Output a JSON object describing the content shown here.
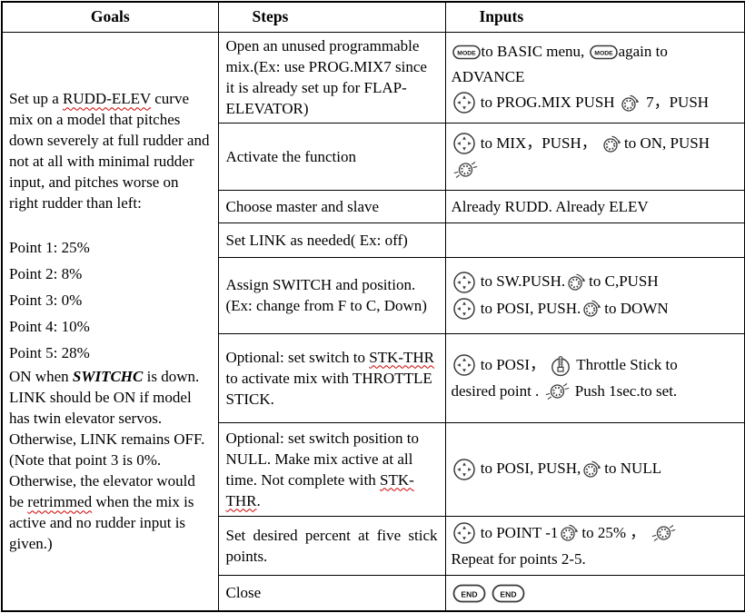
{
  "icons": {
    "mode_label": "MODE",
    "end_label": "END"
  },
  "table": {
    "headers": [
      {
        "label": "Goals"
      },
      {
        "label": "Steps"
      },
      {
        "label": "Inputs"
      }
    ],
    "goals": {
      "blocks": [
        {
          "kind": "para",
          "tokens": [
            {
              "text": "Set up a "
            },
            {
              "text": "RUDD-ELEV",
              "style": "squiggle"
            },
            {
              "text": " curve mix on a model that pitches down severely at full rudder and not at all with minimal rudder input, and pitches worse on right rudder than left:"
            }
          ]
        },
        {
          "kind": "spacer",
          "tokens": []
        },
        {
          "kind": "point",
          "tokens": [
            {
              "text": "Point 1: 25%"
            }
          ]
        },
        {
          "kind": "point",
          "tokens": [
            {
              "text": "Point 2: 8%"
            }
          ]
        },
        {
          "kind": "point",
          "tokens": [
            {
              "text": "Point 3: 0%"
            }
          ]
        },
        {
          "kind": "point",
          "tokens": [
            {
              "text": "Point 4: 10%"
            }
          ]
        },
        {
          "kind": "point",
          "tokens": [
            {
              "text": "Point 5: 28%"
            }
          ]
        },
        {
          "kind": "para",
          "tokens": [
            {
              "text": "ON when "
            },
            {
              "text": "SWITCHC",
              "style": "bi"
            },
            {
              "text": " is down. LINK should be ON if model has twin elevator servos. Otherwise, LINK remains OFF."
            }
          ]
        },
        {
          "kind": "para",
          "tokens": [
            {
              "text": "(Note that point 3 is 0%. Otherwise, the elevator would be "
            },
            {
              "text": "retrimmed",
              "style": "squiggle"
            },
            {
              "text": " when the mix is active and no rudder input is given.)"
            }
          ]
        }
      ]
    },
    "rows": [
      {
        "step": [
          {
            "text": "Open an unused programmable mix.(Ex: use PROG.MIX7 since it is already set up for FLAP-ELEVATOR)"
          }
        ],
        "inputs": [
          [
            {
              "icon": "mode-key"
            },
            {
              "text": "to BASIC menu, "
            },
            {
              "icon": "mode-key"
            },
            {
              "text": "again to"
            }
          ],
          [
            {
              "text": "ADVANCE"
            }
          ],
          [
            {
              "icon": "cursor-pad"
            },
            {
              "text": " to PROG.MIX PUSH "
            },
            {
              "icon": "dial"
            },
            {
              "text": " 7，PUSH"
            }
          ]
        ]
      },
      {
        "step": [
          {
            "text": "Activate the function"
          }
        ],
        "inputs": [
          [
            {
              "icon": "cursor-pad"
            },
            {
              "text": " to MIX，PUSH， "
            },
            {
              "icon": "dial"
            },
            {
              "text": "to ON, PUSH"
            }
          ],
          [
            {
              "icon": "dial-press"
            }
          ]
        ]
      },
      {
        "step": [
          {
            "text": "Choose master and slave"
          }
        ],
        "inputs": [
          [
            {
              "text": "Already RUDD. Already ELEV"
            }
          ]
        ]
      },
      {
        "step": [
          {
            "text": "Set LINK as needed( Ex: off)"
          }
        ],
        "inputs": []
      },
      {
        "step": [
          {
            "text": "Assign SWITCH and position. (Ex: change from F to C, Down)"
          }
        ],
        "inputs": [
          [
            {
              "icon": "cursor-pad"
            },
            {
              "text": " to SW.PUSH."
            },
            {
              "icon": "dial"
            },
            {
              "text": "to C,PUSH"
            }
          ],
          [
            {
              "icon": "cursor-pad"
            },
            {
              "text": " to POSI, PUSH."
            },
            {
              "icon": "dial"
            },
            {
              "text": "to DOWN"
            }
          ]
        ]
      },
      {
        "step": [
          {
            "text": "Optional: set switch to "
          },
          {
            "text": "STK-THR",
            "style": "squiggle"
          },
          {
            "text": " to activate mix with THROTTLE STICK."
          }
        ],
        "inputs": [
          [
            {
              "icon": "cursor-pad"
            },
            {
              "text": " to POSI， "
            },
            {
              "icon": "throttle-stick"
            },
            {
              "text": " Throttle Stick to"
            }
          ],
          [
            {
              "text": "desired point . "
            },
            {
              "icon": "dial-press"
            },
            {
              "text": " Push 1sec.to set."
            }
          ]
        ]
      },
      {
        "step": [
          {
            "text": "Optional: set switch position to NULL. Make mix active at all time. Not complete with "
          },
          {
            "text": "STK-THR",
            "style": "squiggle"
          },
          {
            "text": "."
          }
        ],
        "inputs": [
          [
            {
              "icon": "cursor-pad"
            },
            {
              "text": " to POSI, PUSH,"
            },
            {
              "icon": "dial"
            },
            {
              "text": "to NULL"
            }
          ]
        ]
      },
      {
        "step": [
          {
            "text": "Set desired percent at five stick points."
          }
        ],
        "inputs": [
          [
            {
              "icon": "cursor-pad"
            },
            {
              "text": " to POINT -1"
            },
            {
              "icon": "dial"
            },
            {
              "text": "to 25% ， "
            },
            {
              "icon": "dial-press"
            }
          ],
          [
            {
              "text": "Repeat for points 2-5."
            }
          ]
        ]
      },
      {
        "step": [
          {
            "text": "Close"
          }
        ],
        "inputs": [
          [
            {
              "icon": "end-key"
            },
            {
              "text": "   "
            },
            {
              "icon": "end-key"
            }
          ]
        ]
      }
    ]
  }
}
